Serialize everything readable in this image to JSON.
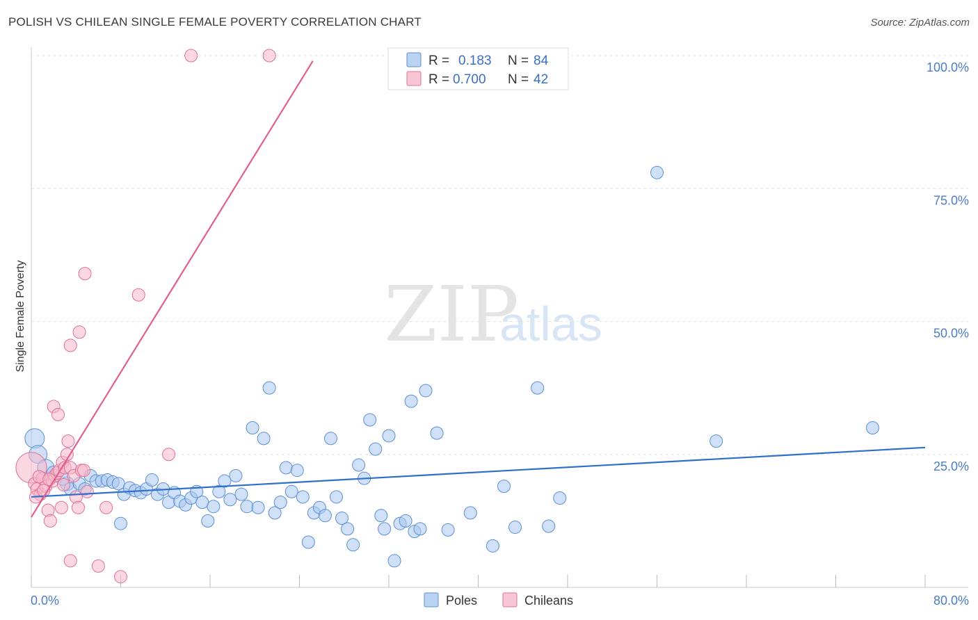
{
  "title": "POLISH VS CHILEAN SINGLE FEMALE POVERTY CORRELATION CHART",
  "source": "Source: ZipAtlas.com",
  "watermark": {
    "zip": "ZIP",
    "atlas": "atlas"
  },
  "legend": {
    "r_label": "R =",
    "n_label": "N =",
    "rows": [
      {
        "name": "Poles",
        "r": "0.183",
        "n": "84",
        "fill": "#a9c8f0",
        "stroke": "#5b8fd6"
      },
      {
        "name": "Chileans",
        "r": "0.700",
        "n": "42",
        "fill": "#f7b8cb",
        "stroke": "#e07095"
      }
    ]
  },
  "chart_data": {
    "type": "scatter",
    "title": "POLISH VS CHILEAN SINGLE FEMALE POVERTY CORRELATION CHART",
    "xlabel": "",
    "ylabel": "Single Female Poverty",
    "xlim": [
      0,
      80
    ],
    "ylim": [
      0,
      100
    ],
    "x_tick_labels": [
      "0.0%",
      "80.0%"
    ],
    "y_ticks": [
      25,
      50,
      75,
      100
    ],
    "y_tick_labels": [
      "25.0%",
      "50.0%",
      "75.0%",
      "100.0%"
    ],
    "x_grid_ticks": [
      8,
      16,
      24,
      32,
      40,
      48,
      56,
      64,
      72
    ],
    "series": [
      {
        "name": "Poles",
        "color": "#5b8fd6",
        "fill": "#a9c8f0",
        "r": 0.183,
        "n": 84,
        "trend": {
          "x": [
            0,
            80
          ],
          "y": [
            17.0,
            26.3
          ],
          "color": "#2f6fcc"
        },
        "points": [
          [
            0.3,
            28.0,
            14
          ],
          [
            0.6,
            25.0,
            13
          ],
          [
            1.3,
            22.5,
            12
          ],
          [
            2.0,
            21.5,
            10
          ],
          [
            3.2,
            19.5,
            10
          ],
          [
            2.8,
            20.5,
            10
          ],
          [
            3.5,
            18.5,
            9
          ],
          [
            4.3,
            19.5,
            9
          ],
          [
            4.8,
            18.5,
            9
          ],
          [
            5.3,
            21.0,
            9
          ],
          [
            5.8,
            20.0,
            9
          ],
          [
            6.3,
            20.0,
            9
          ],
          [
            6.8,
            20.2,
            9
          ],
          [
            7.3,
            19.8,
            9
          ],
          [
            7.8,
            19.5,
            9
          ],
          [
            8.3,
            17.5,
            9
          ],
          [
            8.8,
            18.7,
            9
          ],
          [
            9.3,
            18.2,
            9
          ],
          [
            9.8,
            17.8,
            9
          ],
          [
            10.3,
            18.5,
            9
          ],
          [
            10.8,
            20.2,
            9
          ],
          [
            11.3,
            17.5,
            9
          ],
          [
            11.8,
            18.5,
            9
          ],
          [
            12.3,
            16.0,
            9
          ],
          [
            12.8,
            17.8,
            9
          ],
          [
            13.3,
            16.2,
            9
          ],
          [
            13.8,
            15.5,
            9
          ],
          [
            14.3,
            16.8,
            9
          ],
          [
            14.8,
            18.0,
            9
          ],
          [
            15.3,
            16.0,
            9
          ],
          [
            15.8,
            12.5,
            9
          ],
          [
            16.3,
            15.2,
            9
          ],
          [
            16.8,
            18.0,
            9
          ],
          [
            17.3,
            20.0,
            9
          ],
          [
            17.8,
            16.5,
            9
          ],
          [
            18.3,
            21.0,
            9
          ],
          [
            18.8,
            17.5,
            9
          ],
          [
            19.3,
            15.2,
            9
          ],
          [
            19.8,
            30.0,
            9
          ],
          [
            20.3,
            15.0,
            9
          ],
          [
            20.8,
            28.0,
            9
          ],
          [
            21.3,
            37.5,
            9
          ],
          [
            21.8,
            14.0,
            9
          ],
          [
            22.3,
            16.0,
            9
          ],
          [
            22.8,
            22.5,
            9
          ],
          [
            23.3,
            18.0,
            9
          ],
          [
            23.8,
            22.0,
            9
          ],
          [
            24.3,
            17.0,
            9
          ],
          [
            24.8,
            8.5,
            9
          ],
          [
            25.3,
            14.0,
            9
          ],
          [
            25.8,
            15.0,
            9
          ],
          [
            26.3,
            13.5,
            9
          ],
          [
            26.8,
            28.0,
            9
          ],
          [
            27.3,
            17.0,
            9
          ],
          [
            27.8,
            13.0,
            9
          ],
          [
            28.3,
            11.0,
            9
          ],
          [
            28.8,
            8.0,
            9
          ],
          [
            29.3,
            23.0,
            9
          ],
          [
            29.8,
            20.5,
            9
          ],
          [
            30.3,
            31.5,
            9
          ],
          [
            30.8,
            26.0,
            9
          ],
          [
            31.3,
            13.5,
            9
          ],
          [
            31.6,
            11.0,
            9
          ],
          [
            32.0,
            28.5,
            9
          ],
          [
            32.5,
            5.0,
            9
          ],
          [
            33.0,
            12.0,
            9
          ],
          [
            33.5,
            12.5,
            9
          ],
          [
            34.0,
            35.0,
            9
          ],
          [
            34.3,
            10.5,
            9
          ],
          [
            34.8,
            11.0,
            9
          ],
          [
            35.3,
            37.0,
            9
          ],
          [
            36.3,
            29.0,
            9
          ],
          [
            37.3,
            10.8,
            9
          ],
          [
            39.3,
            14.0,
            9
          ],
          [
            41.3,
            7.8,
            9
          ],
          [
            42.3,
            19.0,
            9
          ],
          [
            43.3,
            11.3,
            9
          ],
          [
            45.3,
            37.5,
            9
          ],
          [
            46.3,
            11.5,
            9
          ],
          [
            47.3,
            16.8,
            9
          ],
          [
            56.0,
            78.0,
            9
          ],
          [
            61.3,
            27.5,
            9
          ],
          [
            75.3,
            30.0,
            9
          ],
          [
            8.0,
            12.0,
            9
          ]
        ]
      },
      {
        "name": "Chileans",
        "color": "#e07095",
        "fill": "#f7b8cb",
        "r": 0.7,
        "n": 42,
        "trend": {
          "x": [
            0,
            25.2
          ],
          "y": [
            13.2,
            99.0
          ],
          "color": "#e0608c"
        },
        "points": [
          [
            0.0,
            22.5,
            22
          ],
          [
            0.3,
            19.5,
            9
          ],
          [
            0.5,
            18.5,
            9
          ],
          [
            0.8,
            17.5,
            9
          ],
          [
            1.0,
            20.5,
            9
          ],
          [
            1.3,
            19.0,
            9
          ],
          [
            1.5,
            14.5,
            9
          ],
          [
            1.7,
            12.5,
            9
          ],
          [
            1.9,
            20.0,
            9
          ],
          [
            2.1,
            21.0,
            9
          ],
          [
            2.3,
            21.5,
            9
          ],
          [
            2.5,
            22.0,
            9
          ],
          [
            2.7,
            15.0,
            9
          ],
          [
            2.0,
            34.0,
            9
          ],
          [
            2.4,
            32.5,
            9
          ],
          [
            2.8,
            23.5,
            9
          ],
          [
            3.0,
            22.5,
            9
          ],
          [
            3.2,
            25.0,
            9
          ],
          [
            3.3,
            27.5,
            9
          ],
          [
            3.5,
            22.5,
            9
          ],
          [
            3.5,
            5.0,
            9
          ],
          [
            3.8,
            21.0,
            9
          ],
          [
            4.0,
            17.0,
            9
          ],
          [
            4.2,
            15.0,
            9
          ],
          [
            3.5,
            45.5,
            9
          ],
          [
            4.3,
            48.0,
            9
          ],
          [
            4.5,
            22.0,
            9
          ],
          [
            4.7,
            22.0,
            9
          ],
          [
            4.8,
            59.0,
            9
          ],
          [
            5.0,
            18.0,
            9
          ],
          [
            6.0,
            4.0,
            9
          ],
          [
            6.7,
            15.0,
            9
          ],
          [
            8.0,
            2.0,
            9
          ],
          [
            9.6,
            55.0,
            9
          ],
          [
            12.3,
            25.0,
            9
          ],
          [
            14.3,
            100.0,
            9
          ],
          [
            21.3,
            100.0,
            9
          ],
          [
            0.4,
            17.0,
            9
          ],
          [
            1.1,
            18.2,
            9
          ],
          [
            0.7,
            20.8,
            9
          ],
          [
            2.9,
            19.3,
            9
          ],
          [
            1.6,
            20.3,
            9
          ]
        ]
      }
    ],
    "legend_position": "top-center"
  }
}
